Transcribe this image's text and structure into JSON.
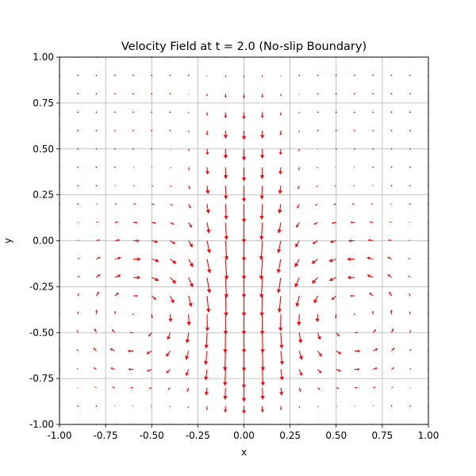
{
  "chart_data": {
    "type": "quiver",
    "title": "Velocity Field at t = 2.0 (No-slip Boundary)",
    "xlabel": "x",
    "ylabel": "y",
    "xlim": [
      -1.0,
      1.0
    ],
    "ylim": [
      -1.0,
      1.0
    ],
    "grid": true,
    "arrow_color": "#ff0000",
    "x_ticks": [
      "-1.00",
      "-0.75",
      "-0.50",
      "-0.25",
      "0.00",
      "0.25",
      "0.50",
      "0.75",
      "1.00"
    ],
    "y_ticks": [
      "-1.00",
      "-0.75",
      "-0.50",
      "-0.25",
      "0.00",
      "0.25",
      "0.50",
      "0.75",
      "1.00"
    ],
    "grid_points_per_axis": 21,
    "field": {
      "description": "Counter-rotating vortex pair with strong downward jet along x = 0",
      "vortices": [
        {
          "x": -0.6,
          "y": -0.4,
          "rotation": "clockwise"
        },
        {
          "x": 0.6,
          "y": -0.4,
          "rotation": "counterclockwise"
        }
      ],
      "central_downflow_x": 0.0
    }
  }
}
